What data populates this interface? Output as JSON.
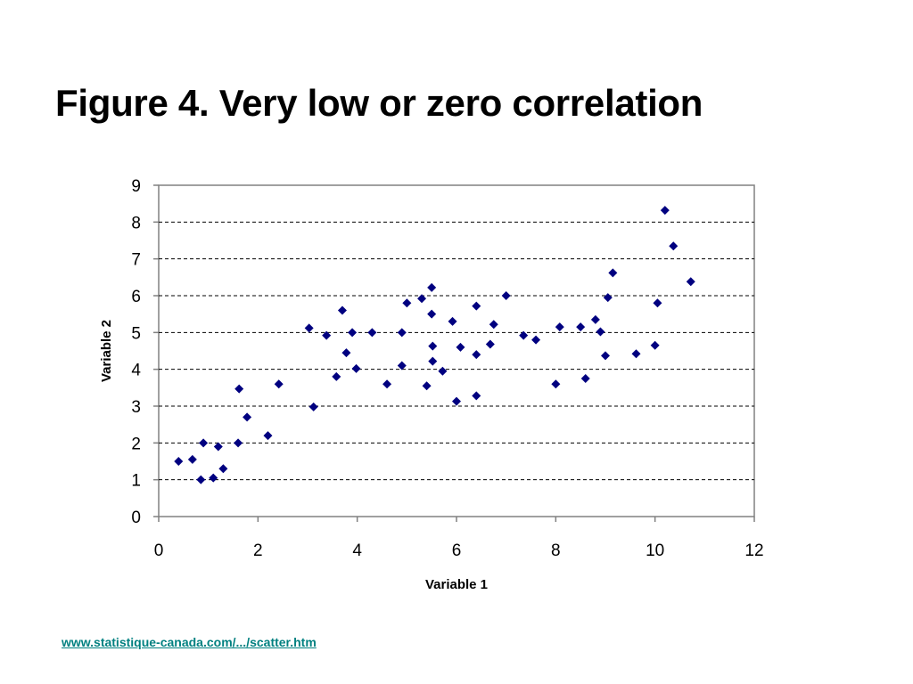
{
  "slide": {
    "title": "Figure 4. Very low or zero correlation",
    "source_link": "www.statistique-canada.com/.../scatter.htm"
  },
  "chart_data": {
    "type": "scatter",
    "xlabel": "Variable 1",
    "ylabel": "Variable 2",
    "xlim": [
      0,
      12
    ],
    "ylim": [
      0,
      9
    ],
    "xticks": [
      0,
      2,
      4,
      6,
      8,
      10,
      12
    ],
    "yticks": [
      0,
      1,
      2,
      3,
      4,
      5,
      6,
      7,
      8,
      9
    ],
    "grid": "horizontal-dashed",
    "legend": "none",
    "marker": "diamond",
    "marker_color": "#000080",
    "series": [
      {
        "points": [
          [
            0.4,
            1.5
          ],
          [
            0.68,
            1.55
          ],
          [
            0.85,
            1.0
          ],
          [
            0.9,
            2.0
          ],
          [
            1.1,
            1.05
          ],
          [
            1.2,
            1.9
          ],
          [
            1.3,
            1.3
          ],
          [
            1.6,
            2.0
          ],
          [
            1.62,
            3.47
          ],
          [
            1.78,
            2.7
          ],
          [
            2.2,
            2.2
          ],
          [
            2.42,
            3.6
          ],
          [
            3.03,
            5.12
          ],
          [
            3.12,
            2.98
          ],
          [
            3.38,
            4.92
          ],
          [
            3.58,
            3.8
          ],
          [
            3.7,
            5.6
          ],
          [
            3.78,
            4.45
          ],
          [
            3.9,
            5.0
          ],
          [
            3.98,
            4.02
          ],
          [
            4.3,
            5.0
          ],
          [
            4.6,
            3.6
          ],
          [
            4.9,
            5.0
          ],
          [
            4.9,
            4.1
          ],
          [
            5.0,
            5.8
          ],
          [
            5.3,
            5.92
          ],
          [
            5.4,
            3.55
          ],
          [
            5.5,
            6.22
          ],
          [
            5.5,
            5.5
          ],
          [
            5.52,
            4.63
          ],
          [
            5.52,
            4.22
          ],
          [
            5.72,
            3.95
          ],
          [
            5.92,
            5.3
          ],
          [
            6.0,
            3.13
          ],
          [
            6.08,
            4.6
          ],
          [
            6.4,
            5.72
          ],
          [
            6.4,
            4.4
          ],
          [
            6.4,
            3.28
          ],
          [
            6.68,
            4.68
          ],
          [
            6.75,
            5.22
          ],
          [
            7.0,
            6.0
          ],
          [
            7.35,
            4.92
          ],
          [
            7.6,
            4.8
          ],
          [
            8.0,
            3.6
          ],
          [
            8.08,
            5.15
          ],
          [
            8.5,
            5.15
          ],
          [
            8.6,
            3.75
          ],
          [
            8.8,
            5.35
          ],
          [
            8.9,
            5.02
          ],
          [
            9.0,
            4.37
          ],
          [
            9.05,
            5.95
          ],
          [
            9.15,
            6.62
          ],
          [
            9.62,
            4.42
          ],
          [
            10.0,
            4.65
          ],
          [
            10.05,
            5.8
          ],
          [
            10.2,
            8.32
          ],
          [
            10.37,
            7.35
          ],
          [
            10.72,
            6.38
          ]
        ]
      }
    ]
  }
}
